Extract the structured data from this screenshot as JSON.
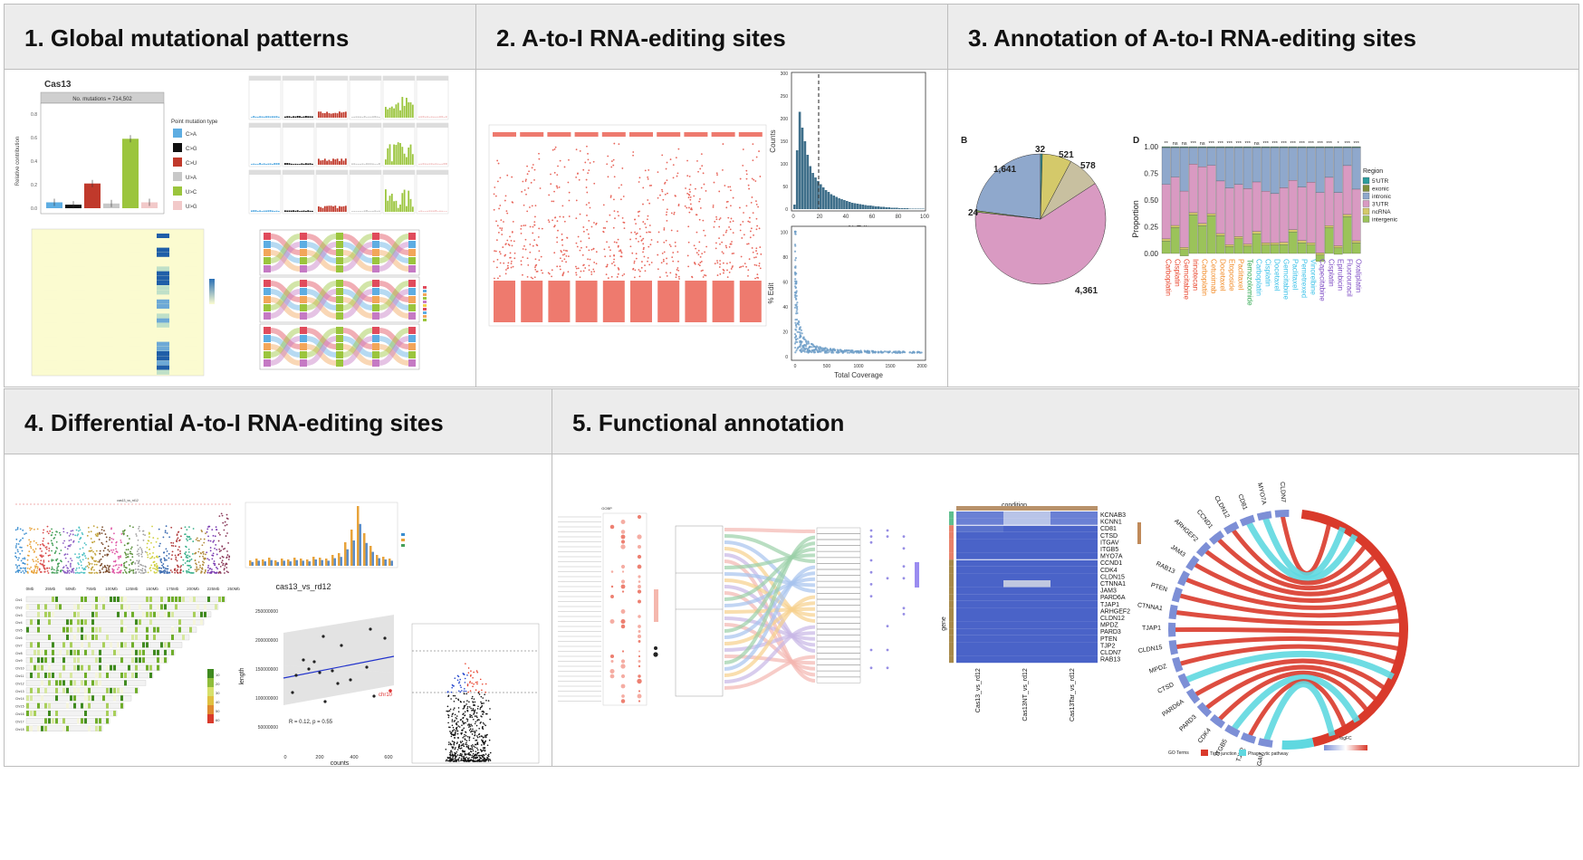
{
  "panels": [
    {
      "title": "1. Global mutational patterns"
    },
    {
      "title": "2. A-to-I RNA-editing sites"
    },
    {
      "title": "3. Annotation of A-to-I RNA-editing sites"
    },
    {
      "title": "4. Differential A-to-I RNA-editing sites"
    },
    {
      "title": "5. Functional annotation"
    }
  ],
  "p1": {
    "label": "Cas13",
    "strip": "No. mutations = 714,502",
    "ylabel": "Relative contribution",
    "legend_title": "Point mutation type",
    "mutation_types": [
      "C>A",
      "C>G",
      "C>U",
      "U>A",
      "U>C",
      "U>G"
    ],
    "yticks": [
      "0.0",
      "0.2",
      "0.4",
      "0.6",
      "0.8"
    ],
    "colors": [
      "#5DADE2",
      "#111111",
      "#C0392B",
      "#C8C8C8",
      "#9BC53D",
      "#F2C9C9"
    ]
  },
  "p2": {
    "hist": {
      "ylabel": "Counts",
      "xlabel": "% Edit",
      "yticks": [
        "0",
        "50",
        "100",
        "150",
        "200",
        "250",
        "300"
      ],
      "xticks": [
        "0",
        "20",
        "40",
        "60",
        "80",
        "100"
      ]
    },
    "scatter": {
      "ylabel": "% Edit",
      "xlabel": "Total Coverage",
      "yticks": [
        "0",
        "20",
        "40",
        "60",
        "80",
        "100"
      ],
      "xticks": [
        "0",
        "500",
        "1000",
        "1500",
        "2000"
      ]
    }
  },
  "p3": {
    "pie_label": "B",
    "pie_values": [
      "1,641",
      "32",
      "521",
      "578",
      "24",
      "4,361"
    ],
    "bar_label": "D",
    "bar_yticks": [
      "0.00",
      "0.25",
      "0.50",
      "0.75",
      "1.00"
    ],
    "bar_ylabel": "Proportion",
    "legend_title": "Region",
    "regions": [
      "5'UTR",
      "exonic",
      "intronic",
      "3'UTR",
      "ncRNA",
      "intergenic"
    ],
    "region_colors": [
      "#2E9C9C",
      "#7F8F3A",
      "#8FA8CC",
      "#D99AC2",
      "#D4C96A",
      "#9BC35A"
    ],
    "sig": [
      "**",
      "ns",
      "ns",
      "***",
      "ns",
      "***",
      "***",
      "***",
      "***",
      "***",
      "ns",
      "***",
      "***",
      "***",
      "***",
      "***",
      "***",
      "***",
      "***",
      "*",
      "***",
      "***"
    ],
    "drugs": [
      "Carboplatin",
      "Cisplatin",
      "Gemcitabine",
      "Irinotecan",
      "Carboplatin",
      "Cetuximab",
      "Docetaxel",
      "Etoposide",
      "Paclitaxel",
      "Temozolomide",
      "Carboplatin",
      "Cisplatin",
      "Docetaxel",
      "Gemcitabine",
      "Paclitaxel",
      "Pemetrexed",
      "Vinorelbine",
      "Capecitabine",
      "Cisplatin",
      "Epirubicin",
      "Fluorouracil",
      "Oxaliplatin"
    ]
  },
  "p4": {
    "manhattan_title": "cas13_vs_rd12",
    "corr_title": "cas13_vs_rd12",
    "corr_ylabel": "length",
    "corr_xlabel": "counts",
    "corr_stat": "R = 0.12, p = 0.55",
    "corr_yticks": [
      "50000000",
      "100000000",
      "150000000",
      "200000000",
      "250000000"
    ],
    "corr_xticks": [
      "0",
      "200",
      "400",
      "600"
    ],
    "corr_point_label": "chr10",
    "legend_ticks": [
      "10",
      "20",
      "30",
      "40",
      "50",
      "60"
    ],
    "chroms": [
      "Chr1",
      "Chr2",
      "Chr3",
      "Chr4",
      "Chr5",
      "Chr6",
      "Chr7",
      "Chr8",
      "Chr9",
      "Chr10",
      "Chr11",
      "Chr12",
      "Chr13",
      "Chr14",
      "Chr15",
      "Chr16",
      "Chr17",
      "Chr18"
    ],
    "positions": [
      "0Mb",
      "25Mb",
      "50Mb",
      "75Mb",
      "100Mb",
      "125Mb",
      "150Mb",
      "175Mb",
      "200Mb",
      "225Mb",
      "250Mb"
    ]
  },
  "p5": {
    "dot_title": "GOBP",
    "heatmap_title": "condition",
    "heatmap_ylabel": "gene",
    "genes": [
      "KCNAB3",
      "KCNN1",
      "CD81",
      "CTSD",
      "ITGAV",
      "ITGB5",
      "MYO7A",
      "CCND1",
      "CDK4",
      "CLDN15",
      "CTNNA1",
      "JAM3",
      "PARD6A",
      "TJAP1",
      "ARHGEF2",
      "CLDN12",
      "MPDZ",
      "PARD3",
      "PTEN",
      "TJP2",
      "CLDN7",
      "RAB13"
    ],
    "conditions": [
      "Cas13_vs_rd12",
      "Cas13NT_vs_rd12",
      "Cas13Tar_vs_rd12"
    ],
    "chord_genes": [
      "CLDN7",
      "MYO7A",
      "CD81",
      "CLDN12",
      "CCND1",
      "ARHGEF2",
      "JAM3",
      "RAB13",
      "PTEN",
      "CTNNA1",
      "TJAP1",
      "CLDN15",
      "MPDZ",
      "CTSD",
      "PARD6A",
      "PARD3",
      "CDK4",
      "ITGB5",
      "TJP2",
      "ITGAV"
    ],
    "chord_legend_title": "GO Terms",
    "chord_terms": [
      "Tight junction",
      "Phagocytic pathway"
    ],
    "chord_colors": [
      "#D93A2B",
      "#5FD8E0"
    ],
    "logfc_label": "logFC"
  }
}
